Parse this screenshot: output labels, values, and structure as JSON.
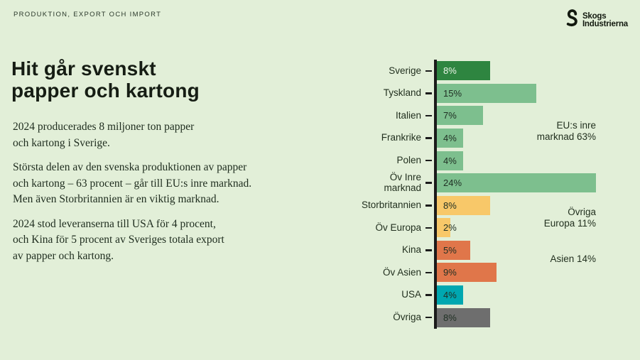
{
  "kicker": "PRODUKTION, EXPORT OCH IMPORT",
  "logo": {
    "line1": "Skogs",
    "line2": "Industrierna"
  },
  "title": "Hit går svenskt\npapper och kartong",
  "paragraphs": [
    "2024 producerades 8 miljoner ton papper\noch kartong i Sverige.",
    "Största delen av den svenska produktionen av papper\noch kartong – 63 procent – går till EU:s inre marknad.\nMen även Storbritannien är en viktig marknad.",
    "2024 stod leveranserna till USA för 4 procent,\noch Kina för 5 procent av Sveriges totala export\nav papper och kartong."
  ],
  "chart_data": {
    "type": "bar",
    "orientation": "horizontal",
    "categories": [
      "Sverige",
      "Tyskland",
      "Italien",
      "Frankrike",
      "Polen",
      "Öv Inre\nmarknad",
      "Storbritannien",
      "Öv Europa",
      "Kina",
      "Öv Asien",
      "USA",
      "Övriga"
    ],
    "values": [
      8,
      15,
      7,
      4,
      4,
      24,
      8,
      2,
      5,
      9,
      4,
      8
    ],
    "value_labels": [
      "8%",
      "15%",
      "7%",
      "4%",
      "4%",
      "24%",
      "8%",
      "2%",
      "5%",
      "9%",
      "4%",
      "8%"
    ],
    "bar_colors": [
      "#2e8540",
      "#7dbf8e",
      "#7dbf8e",
      "#7dbf8e",
      "#7dbf8e",
      "#7dbf8e",
      "#f8c869",
      "#f8c869",
      "#e0764a",
      "#e0764a",
      "#00a7b0",
      "#6e6e6e"
    ],
    "value_text_colors": [
      "#eef6ea",
      "#203024",
      "#203024",
      "#203024",
      "#203024",
      "#203024",
      "#203024",
      "#203024",
      "#203024",
      "#203024",
      "#203024",
      "#203024"
    ],
    "xlim": [
      0,
      24
    ],
    "grid": false,
    "annotations": {
      "eu": "EU:s inre\nmarknad 63%",
      "europa": "Övriga\nEuropa 11%",
      "asien": "Asien 14%"
    }
  },
  "colors": {
    "background": "#e2efd8",
    "text": "#20301f",
    "axis": "#1b1b1b",
    "dark_green": "#2e8540",
    "green": "#7dbf8e",
    "amber": "#f8c869",
    "orange": "#e0764a",
    "teal": "#00a7b0",
    "gray": "#6e6e6e"
  }
}
